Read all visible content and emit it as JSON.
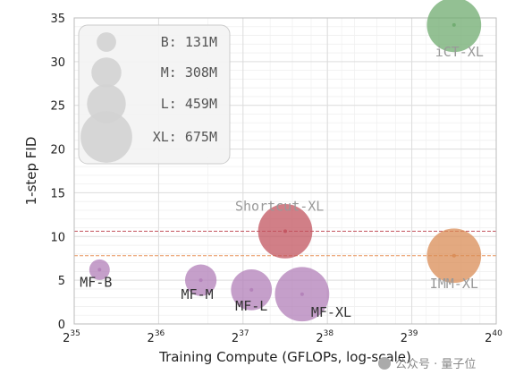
{
  "chart_data": {
    "type": "scatter",
    "xlabel": "Training Compute (GFLOPs, log-scale)",
    "ylabel": "1-step FID",
    "x_scale": "log2",
    "xlim": [
      35,
      40
    ],
    "ylim": [
      0,
      35
    ],
    "grid": true,
    "x_ticks": [
      {
        "base": "2",
        "exp": "35"
      },
      {
        "base": "2",
        "exp": "36"
      },
      {
        "base": "2",
        "exp": "37"
      },
      {
        "base": "2",
        "exp": "38"
      },
      {
        "base": "2",
        "exp": "39"
      },
      {
        "base": "2",
        "exp": "40"
      }
    ],
    "y_ticks": [
      "0",
      "5",
      "10",
      "15",
      "20",
      "25",
      "30",
      "35"
    ],
    "points": [
      {
        "label": "MF-B",
        "log2_gflops": 35.3,
        "fid": 6.2,
        "params_m": 131,
        "color": "#b17fb8"
      },
      {
        "label": "MF-M",
        "log2_gflops": 36.5,
        "fid": 5.0,
        "params_m": 308,
        "color": "#b17fb8"
      },
      {
        "label": "MF-L",
        "log2_gflops": 37.1,
        "fid": 3.9,
        "params_m": 459,
        "color": "#b17fb8"
      },
      {
        "label": "MF-XL",
        "log2_gflops": 37.7,
        "fid": 3.4,
        "params_m": 675,
        "color": "#b17fb8"
      },
      {
        "label": "Shortcut-XL",
        "log2_gflops": 37.5,
        "fid": 10.6,
        "params_m": 675,
        "color": "#c2545f"
      },
      {
        "label": "iCT-XL",
        "log2_gflops": 39.5,
        "fid": 34.2,
        "params_m": 675,
        "color": "#6fab6f"
      },
      {
        "label": "IMM-XL",
        "log2_gflops": 39.5,
        "fid": 7.8,
        "params_m": 675,
        "color": "#d98c55"
      }
    ],
    "reference_lines": [
      {
        "y": 10.6,
        "color": "#c2545f"
      },
      {
        "y": 7.8,
        "color": "#e8945a"
      }
    ],
    "legend": {
      "placement": "top-left",
      "title": "",
      "items": [
        {
          "label": "B: 131M",
          "params_m": 131
        },
        {
          "label": "M: 308M",
          "params_m": 308
        },
        {
          "label": "L: 459M",
          "params_m": 459
        },
        {
          "label": "XL: 675M",
          "params_m": 675
        }
      ]
    }
  },
  "watermark": "公众号 · 量子位"
}
